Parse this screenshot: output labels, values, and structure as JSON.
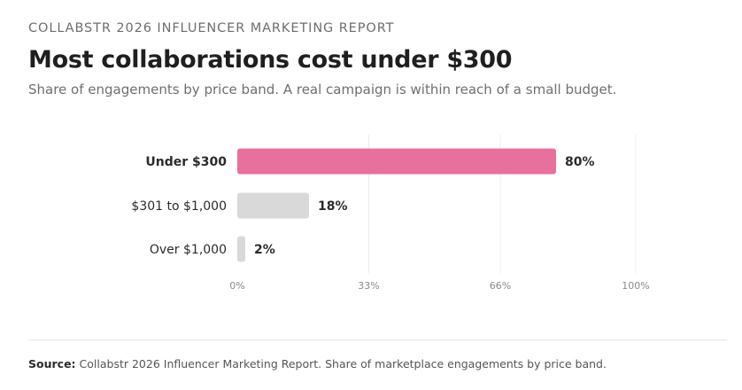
{
  "header": {
    "kicker": "COLLABSTR 2026 INFLUENCER MARKETING REPORT",
    "title": "Most collaborations cost under $300",
    "subtitle": "Share of engagements by price band. A real campaign is within reach of a small budget."
  },
  "chart_data": {
    "type": "bar",
    "orientation": "horizontal",
    "categories": [
      "Under $300",
      "$301 to $1,000",
      "Over $1,000"
    ],
    "values": [
      80,
      18,
      2
    ],
    "value_labels": [
      "80%",
      "18%",
      "2%"
    ],
    "xlim": [
      0,
      100
    ],
    "xticks": [
      0,
      33,
      66,
      100
    ],
    "xtick_labels": [
      "0%",
      "33%",
      "66%",
      "100%"
    ],
    "grid": true,
    "highlight_index": 0,
    "colors": {
      "highlight": "#e8709c",
      "muted": "#d9d9d9",
      "grid": "#ececec"
    }
  },
  "footer": {
    "source_label": "Source:",
    "source_text": "Collabstr 2026 Influencer Marketing Report. Share of marketplace engagements by price band."
  }
}
